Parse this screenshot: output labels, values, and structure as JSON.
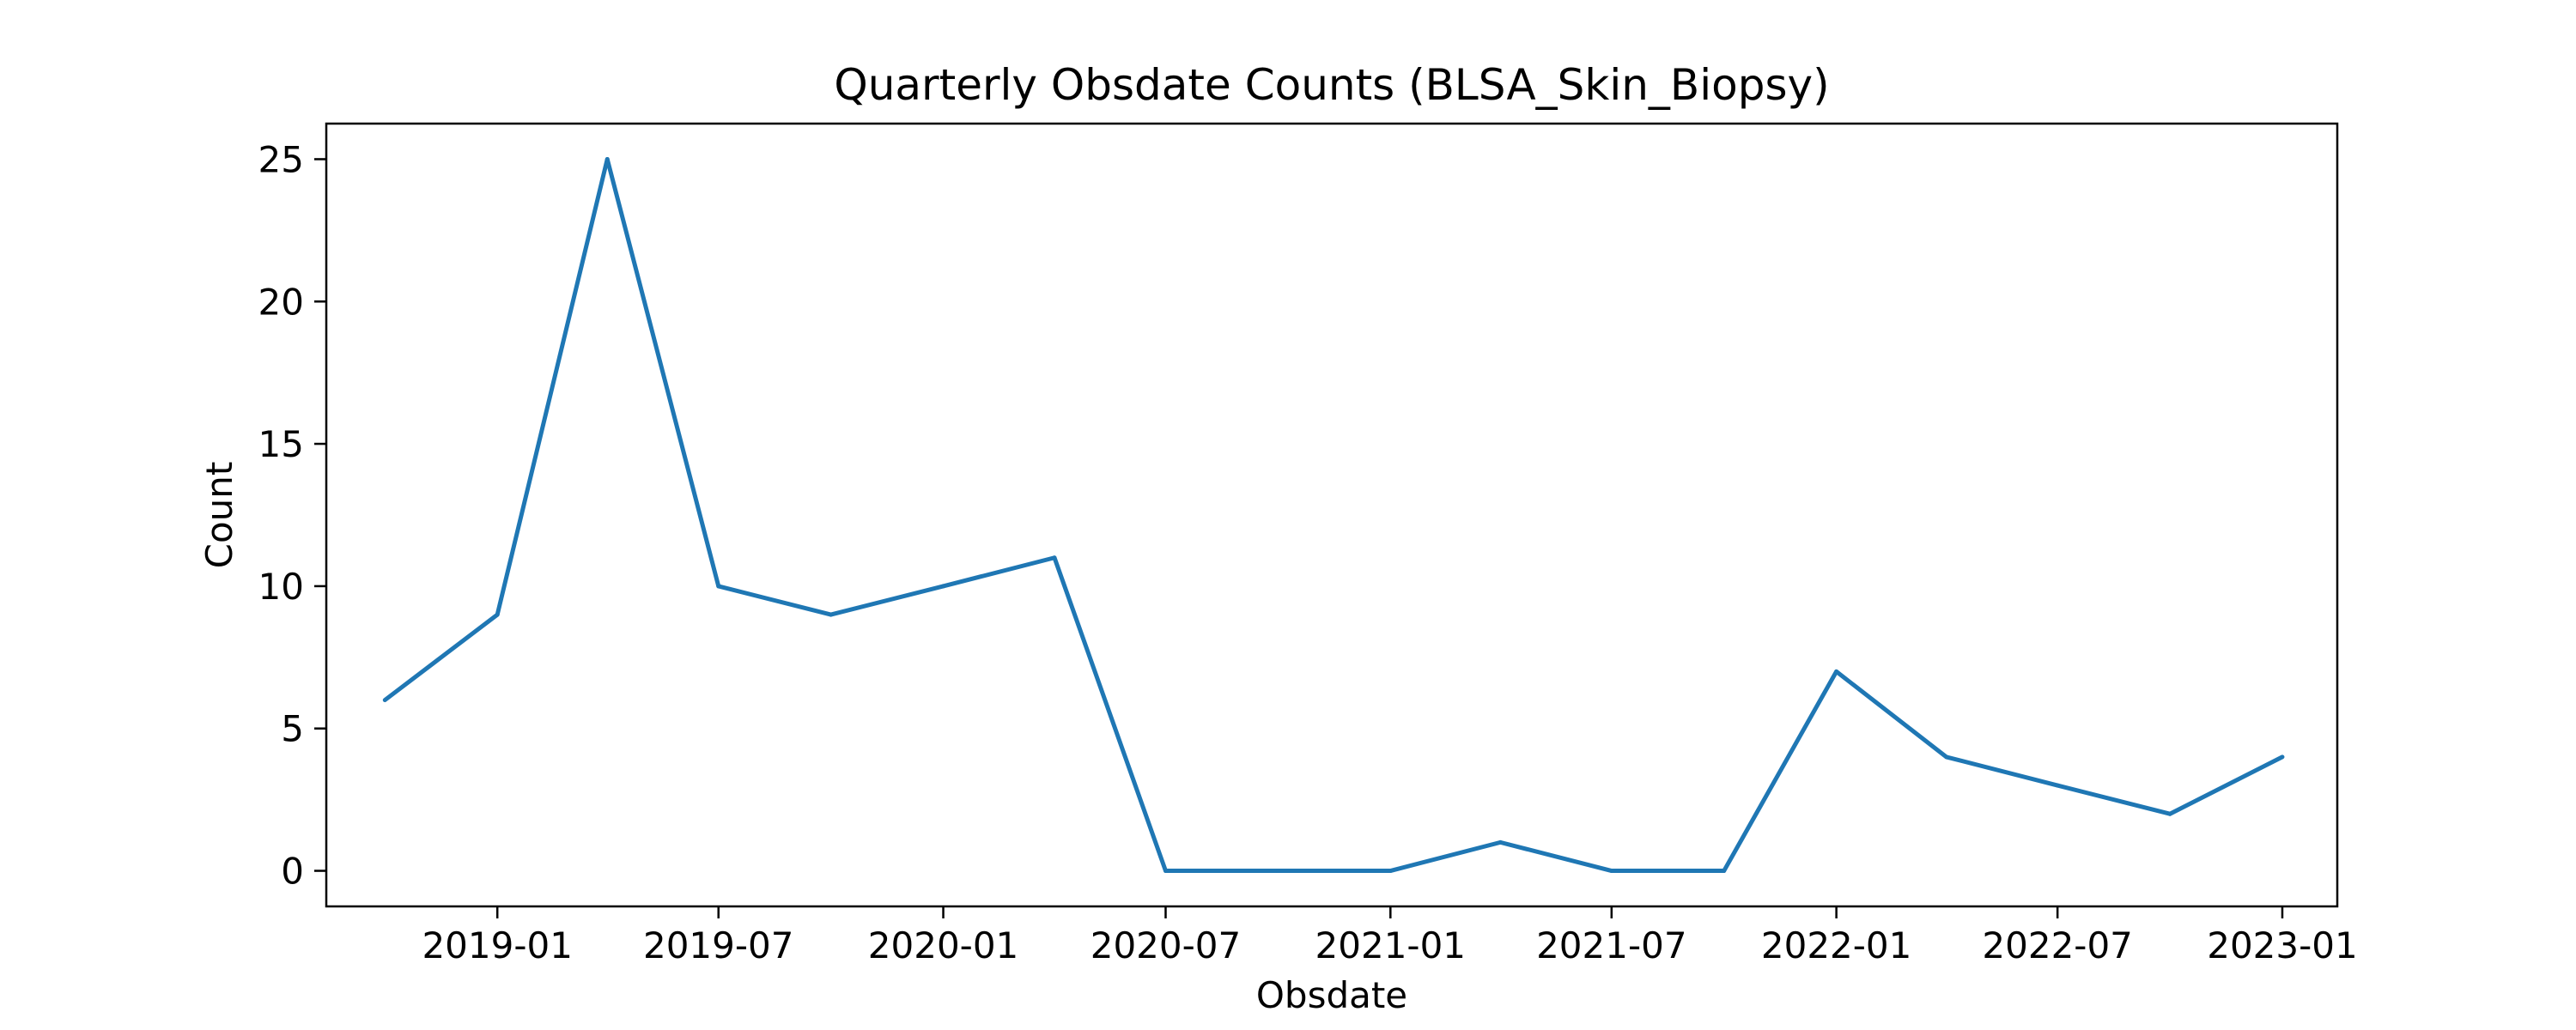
{
  "chart_data": {
    "type": "line",
    "title": "Quarterly Obsdate Counts (BLSA_Skin_Biopsy)",
    "xlabel": "Obsdate",
    "ylabel": "Count",
    "x_range": [
      "2018-08-14",
      "2023-02-15"
    ],
    "ylim": [
      -1.25,
      26.25
    ],
    "grid": false,
    "x_ticks": [
      "2019-01",
      "2019-07",
      "2020-01",
      "2020-07",
      "2021-01",
      "2021-07",
      "2022-01",
      "2022-07",
      "2023-01"
    ],
    "y_ticks": [
      0,
      5,
      10,
      15,
      20,
      25
    ],
    "series": [
      {
        "color": "#1f77b4",
        "x": [
          "2018-10-01",
          "2019-01-01",
          "2019-04-01",
          "2019-07-01",
          "2019-10-01",
          "2020-01-01",
          "2020-04-01",
          "2020-07-01",
          "2020-10-01",
          "2021-01-01",
          "2021-04-01",
          "2021-07-01",
          "2021-10-01",
          "2022-01-01",
          "2022-04-01",
          "2022-07-01",
          "2022-10-01",
          "2023-01-01"
        ],
        "values": [
          6,
          9,
          25,
          10,
          9,
          10,
          11,
          0,
          0,
          0,
          1,
          0,
          0,
          7,
          4,
          3,
          2,
          4
        ]
      }
    ]
  }
}
